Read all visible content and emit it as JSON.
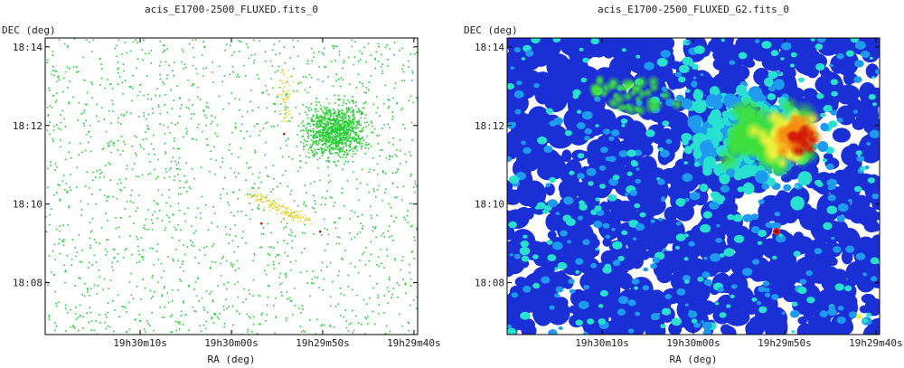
{
  "chart_data": [
    {
      "type": "scatter",
      "title": "acis_E1700-2500_FLUXED.fits_0",
      "xlabel": "RA (deg)",
      "ylabel": "DEC (deg)",
      "x_ticks": [
        "19h30m10s",
        "19h30m00s",
        "19h29m50s",
        "19h29m40s"
      ],
      "y_ticks": [
        "18:14",
        "18:12",
        "18:10",
        "18:08"
      ],
      "grid": false,
      "colors": {
        "low": "#22cc33",
        "mid": "#e8d020",
        "high": "#cc2200",
        "frame": "#000000"
      },
      "image": "photon event map (sparse green counts, clustered at upper right)"
    },
    {
      "type": "heatmap",
      "title": "acis_E1700-2500_FLUXED_G2.fits_0",
      "xlabel": "RA (deg)",
      "ylabel": "DEC (deg)",
      "x_ticks": [
        "19h30m10s",
        "19h30m00s",
        "19h29m50s",
        "19h29m40s"
      ],
      "y_ticks": [
        "18:14",
        "18:12",
        "18:10",
        "18:08"
      ],
      "grid": false,
      "colormap": [
        "#1a2fd6",
        "#1e9af0",
        "#27e0d0",
        "#3de03a",
        "#f2f03a",
        "#f5a020",
        "#e02010",
        "#700000"
      ],
      "image": "Gaussian-smoothed counts map, bright diffuse emission at upper right"
    }
  ]
}
